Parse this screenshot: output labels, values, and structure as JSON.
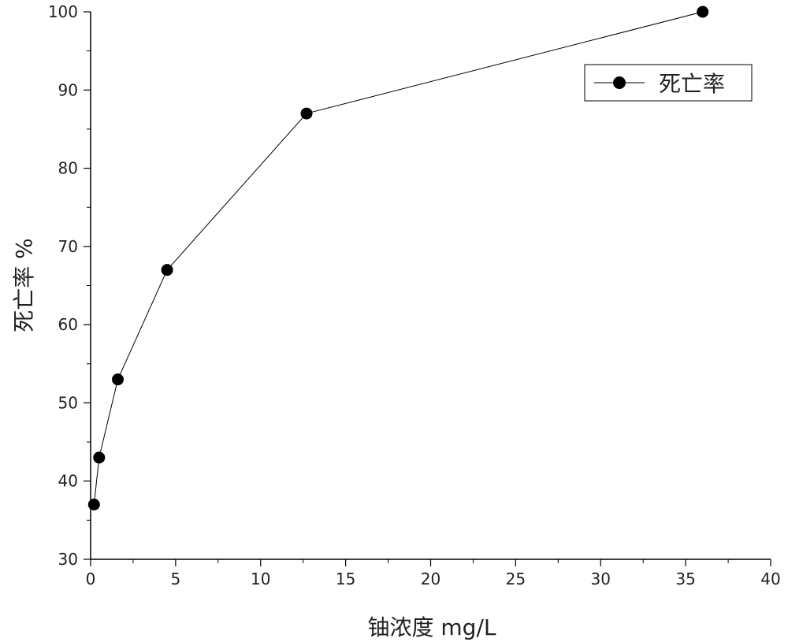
{
  "chart_data": {
    "type": "line",
    "xlabel": "铀浓度 mg/L",
    "ylabel": "死亡率 %",
    "xlim": [
      0,
      40
    ],
    "ylim": [
      30,
      100
    ],
    "x_ticks": [
      0,
      5,
      10,
      15,
      20,
      25,
      30,
      35,
      40
    ],
    "y_ticks": [
      30,
      40,
      50,
      60,
      70,
      80,
      90,
      100
    ],
    "grid": false,
    "legend_position": "top-right",
    "series": [
      {
        "name": "死亡率",
        "color": "#000000",
        "marker": "circle",
        "x": [
          0.2,
          0.5,
          1.6,
          4.5,
          12.7,
          36
        ],
        "y": [
          37,
          43,
          53,
          67,
          87,
          100
        ]
      }
    ]
  }
}
